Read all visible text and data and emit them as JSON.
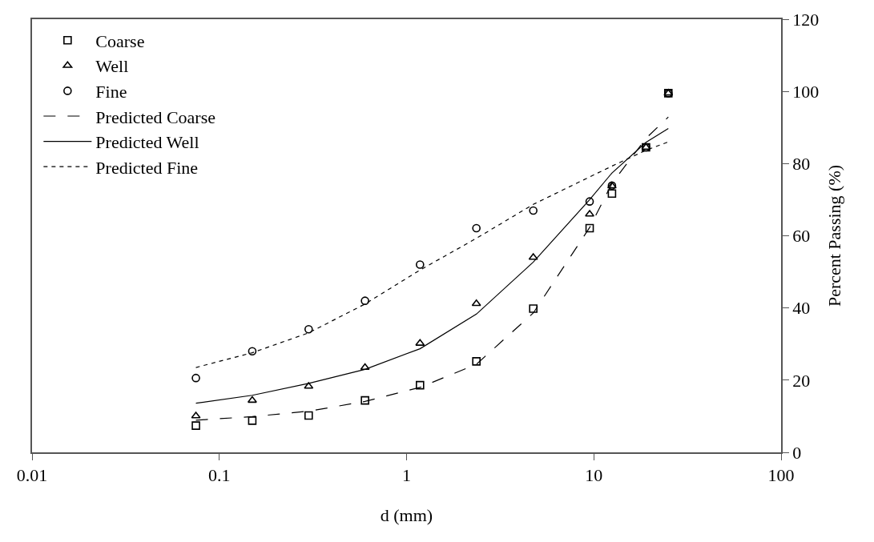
{
  "chart_data": {
    "type": "scatter",
    "xlabel": "d (mm)",
    "y2label": "Percent Passing (%)",
    "log": "x",
    "xlim": [
      0.01,
      100
    ],
    "xticks": [
      0.01,
      0.1,
      1,
      10,
      100
    ],
    "ylim": [
      0,
      120
    ],
    "yticks": [
      0,
      20,
      40,
      60,
      80,
      100,
      120
    ],
    "legend": "top left",
    "x": [
      0.075,
      0.15,
      0.3,
      0.6,
      1.18,
      2.36,
      4.75,
      9.5,
      12.5,
      19,
      25
    ],
    "series": [
      {
        "name": "Coarse",
        "marker": "square",
        "color": "#000000",
        "values": [
          7.4,
          8.8,
          10.2,
          14.4,
          18.6,
          25.2,
          39.8,
          62.1,
          71.7,
          84.5,
          99.5
        ]
      },
      {
        "name": "Well",
        "marker": "triangle",
        "color": "#000000",
        "values": [
          10.1,
          14.4,
          18.3,
          23.5,
          30.2,
          41.2,
          54,
          66,
          73.8,
          84.5,
          99.5
        ]
      },
      {
        "name": "Fine",
        "marker": "circle",
        "color": "#000000",
        "values": [
          20.6,
          28,
          34.1,
          42,
          52,
          62.1,
          67,
          69.5,
          73.9,
          84.5,
          99.5
        ]
      },
      {
        "name": "Predicted Coarse",
        "type": "line",
        "marker": "none",
        "line_style": "dashed",
        "color": "#000000",
        "values": [
          8.9,
          9.9,
          11.4,
          14.1,
          18,
          24.4,
          38.6,
          62.3,
          74.5,
          87,
          92.9
        ]
      },
      {
        "name": "Predicted Well",
        "type": "line",
        "marker": "none",
        "line_style": "solid",
        "color": "#000000",
        "values": [
          13.6,
          15.8,
          19.1,
          23,
          28.7,
          38.3,
          52.7,
          70,
          77.4,
          85.9,
          89.7
        ]
      },
      {
        "name": "Predicted Fine",
        "type": "line",
        "marker": "none",
        "line_style": "dotted",
        "color": "#000000",
        "values": [
          23.5,
          27.6,
          33.1,
          41.1,
          50.5,
          59.3,
          68.7,
          76.3,
          79.3,
          83.7,
          86
        ]
      }
    ]
  }
}
